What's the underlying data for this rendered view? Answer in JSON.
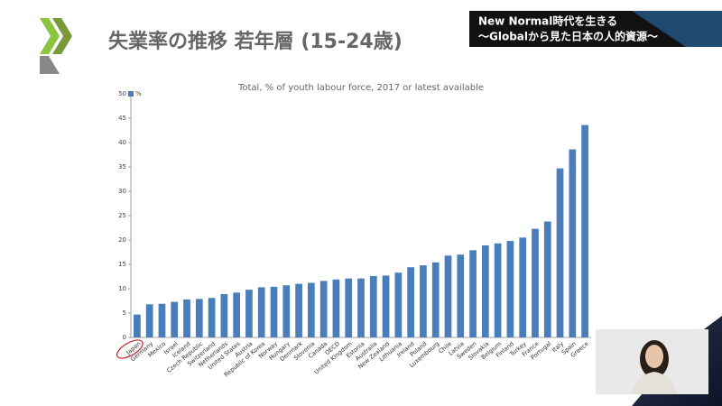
{
  "header": {
    "title": "失業率の推移 若年層 (15-24歳)",
    "banner_line1": "New Normal時代を生きる",
    "banner_line2": "〜Globalから見た日本の人的資源〜"
  },
  "chart_data": {
    "type": "bar",
    "title": "Total, % of youth labour force, 2017 or latest available",
    "categories": [
      "Japan",
      "Germany",
      "Mexico",
      "Israel",
      "Iceland",
      "Czech Republic",
      "Switzerland",
      "Netherlands",
      "United States",
      "Austria",
      "Republic of Korea",
      "Norway",
      "Hungary",
      "Denmark",
      "Slovenia",
      "Canada",
      "OECD",
      "United Kingdom",
      "Estonia",
      "Australia",
      "New Zealand",
      "Lithuania",
      "Ireland",
      "Poland",
      "Luxembourg",
      "Chile",
      "Latvia",
      "Sweden",
      "Slovakia",
      "Belgium",
      "Finland",
      "Turkey",
      "France",
      "Portugal",
      "Italy",
      "Spain",
      "Greece"
    ],
    "series": [
      {
        "name": "%",
        "color": "#4a7ebb",
        "values": [
          4.7,
          6.8,
          6.9,
          7.3,
          7.8,
          7.9,
          8.1,
          8.9,
          9.2,
          9.8,
          10.3,
          10.4,
          10.7,
          11.0,
          11.2,
          11.6,
          11.9,
          12.1,
          12.1,
          12.6,
          12.7,
          13.3,
          14.4,
          14.8,
          15.4,
          16.8,
          17.0,
          17.9,
          18.9,
          19.3,
          19.8,
          20.5,
          22.3,
          23.8,
          34.7,
          38.6,
          43.6
        ]
      }
    ],
    "ylim": [
      0,
      50
    ],
    "yticks": [
      0,
      5,
      10,
      15,
      20,
      25,
      30,
      35,
      40,
      45,
      50
    ],
    "grid": false,
    "legend": "top-left"
  }
}
